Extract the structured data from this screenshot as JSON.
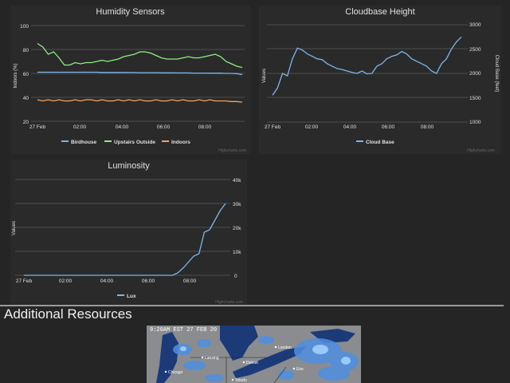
{
  "charts": {
    "humidity": {
      "title": "Humidity Sensors",
      "ylabel": "Indoors (%)",
      "yticks": [
        "20",
        "40",
        "60",
        "80",
        "100"
      ],
      "xticks": [
        "27 Feb",
        "02:00",
        "04:00",
        "06:00",
        "08:00"
      ],
      "legend": [
        "Birdhouse",
        "Upstairs Outside",
        "Indoors"
      ],
      "credits": "Highcharts.com"
    },
    "cloudbase": {
      "title": "Cloudbase Height",
      "ylabel": "Values",
      "ylabel_right": "Cloud Base (feet)",
      "yticks_right": [
        "1000",
        "1500",
        "2000",
        "2500",
        "3000"
      ],
      "xticks": [
        "27 Feb",
        "02:00",
        "04:00",
        "06:00",
        "08:00"
      ],
      "legend": [
        "Cloud Base"
      ],
      "credits": "Highcharts.com"
    },
    "luminosity": {
      "title": "Luminosity",
      "ylabel": "Values",
      "yticks_right": [
        "0",
        "10k",
        "20k",
        "30k",
        "40k"
      ],
      "xticks": [
        "27 Feb",
        "02:00",
        "04:00",
        "06:00",
        "08:00"
      ],
      "legend": [
        "Lux"
      ],
      "credits": "Highcharts.com"
    }
  },
  "chart_data": [
    {
      "type": "line",
      "title": "Humidity Sensors",
      "ylabel": "Indoors (%)",
      "ylim": [
        20,
        100
      ],
      "x_hours": [
        0,
        0.25,
        0.5,
        0.75,
        1,
        1.25,
        1.5,
        1.75,
        2,
        2.25,
        2.5,
        2.75,
        3,
        3.25,
        3.5,
        3.75,
        4,
        4.25,
        4.5,
        4.75,
        5,
        5.25,
        5.5,
        5.75,
        6,
        6.25,
        6.5,
        6.75,
        7,
        7.25,
        7.5,
        7.75,
        8,
        8.25,
        8.5,
        8.75,
        9,
        9.25,
        9.5
      ],
      "series": [
        {
          "name": "Birdhouse",
          "color": "#7cb5ec",
          "values": [
            61,
            61,
            61,
            61,
            61,
            61,
            61,
            61,
            61,
            61,
            61,
            61,
            60.8,
            60.8,
            60.8,
            60.8,
            60.7,
            60.7,
            60.7,
            60.6,
            60.6,
            60.6,
            60.6,
            60.5,
            60.5,
            60.5,
            60.4,
            60.4,
            60.4,
            60.3,
            60.3,
            60.3,
            60.2,
            60.2,
            60.2,
            60,
            60,
            59.8,
            59
          ]
        },
        {
          "name": "Upstairs Outside",
          "color": "#90ee7e",
          "values": [
            85,
            82,
            76,
            78,
            73,
            67,
            67,
            69,
            68,
            69,
            69,
            70,
            71,
            70,
            71,
            72,
            74,
            75,
            76,
            78,
            78,
            77,
            75,
            73,
            72,
            72,
            72,
            73,
            74,
            73,
            73,
            74,
            75,
            76,
            74,
            70,
            68,
            66,
            65
          ]
        },
        {
          "name": "Indoors",
          "color": "#f7a35c",
          "values": [
            38,
            37,
            38,
            37,
            38,
            37,
            37,
            38,
            37,
            38,
            38,
            37,
            38,
            37,
            37,
            38,
            37,
            38,
            37,
            38,
            37,
            37,
            38,
            37,
            37,
            38,
            37,
            38,
            37,
            37,
            38,
            37,
            38,
            37,
            37,
            37,
            36.5,
            36.5,
            36
          ]
        }
      ]
    },
    {
      "type": "line",
      "title": "Cloudbase Height",
      "ylabel": "Cloud Base (feet)",
      "ylim": [
        1000,
        3000
      ],
      "x_hours": [
        0,
        0.25,
        0.5,
        0.75,
        1,
        1.25,
        1.5,
        1.75,
        2,
        2.25,
        2.5,
        2.75,
        3,
        3.25,
        3.5,
        3.75,
        4,
        4.25,
        4.5,
        4.75,
        5,
        5.25,
        5.5,
        5.75,
        6,
        6.25,
        6.5,
        6.75,
        7,
        7.25,
        7.5,
        7.75,
        8,
        8.25,
        8.5,
        8.75,
        9,
        9.25,
        9.5
      ],
      "series": [
        {
          "name": "Cloud Base",
          "color": "#7cb5ec",
          "values": [
            1550,
            1700,
            2000,
            1950,
            2300,
            2520,
            2480,
            2400,
            2350,
            2300,
            2280,
            2200,
            2150,
            2100,
            2080,
            2050,
            2020,
            2000,
            2050,
            1990,
            2000,
            2150,
            2200,
            2300,
            2350,
            2380,
            2450,
            2400,
            2300,
            2250,
            2200,
            2150,
            2050,
            2000,
            2200,
            2300,
            2500,
            2650,
            2750
          ]
        }
      ]
    },
    {
      "type": "line",
      "title": "Luminosity",
      "ylabel": "Values",
      "ylim": [
        0,
        40000
      ],
      "x_hours": [
        0,
        0.5,
        1,
        1.5,
        2,
        2.5,
        3,
        3.5,
        4,
        4.5,
        5,
        5.5,
        6,
        6.5,
        7,
        7.25,
        7.5,
        7.75,
        8,
        8.25,
        8.5,
        8.75,
        9,
        9.25,
        9.5
      ],
      "series": [
        {
          "name": "Lux",
          "color": "#7cb5ec",
          "values": [
            0,
            0,
            0,
            0,
            0,
            0,
            0,
            0,
            0,
            0,
            0,
            0,
            0,
            0,
            0,
            1000,
            3000,
            5500,
            8000,
            9000,
            18000,
            19000,
            23000,
            27000,
            30000
          ]
        }
      ]
    }
  ],
  "resources": {
    "title": "Additional Resources",
    "radar_timestamp": "9:20AM EST 27 FEB 20",
    "radar_cities": [
      "London",
      "Lansing",
      "Detroit",
      "Erie",
      "Toledo",
      "Chicago"
    ]
  },
  "colors": {
    "background": "#252525",
    "panel": "#2a2a2b",
    "grid": "#707073",
    "text": "#e0e0e3",
    "blue": "#7cb5ec",
    "green": "#90ee7e",
    "orange": "#f7a35c"
  }
}
